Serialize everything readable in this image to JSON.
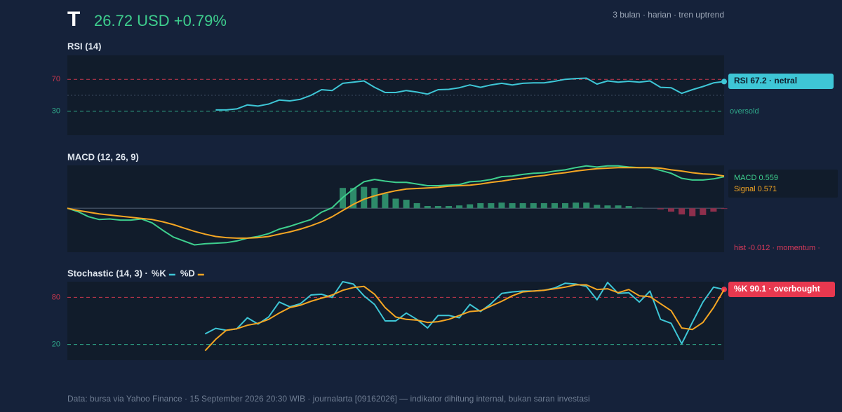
{
  "header": {
    "ticker": "T",
    "price": "26.72 USD +0.79%",
    "subtitle": "3 bulan · harian · tren uptrend"
  },
  "chart_data": [
    {
      "type": "line",
      "title": "RSI (14)",
      "ylim": [
        0,
        100
      ],
      "yticks": [
        30,
        70
      ],
      "ytick_colors": [
        "#2fa88a",
        "#c8384e"
      ],
      "midline": 50,
      "end_dot": "#3ec6d6",
      "categories": [
        null,
        null,
        null,
        null,
        null,
        null,
        null,
        null,
        null,
        null,
        null,
        null,
        null,
        null,
        null,
        null,
        null,
        null,
        null,
        null,
        null,
        null,
        null,
        null,
        null,
        null,
        null,
        null,
        null,
        null,
        null,
        null,
        null,
        null,
        null,
        null,
        null,
        null,
        null,
        null,
        null,
        null,
        null,
        null,
        null,
        null,
        null,
        null,
        null,
        null,
        null,
        null,
        null,
        null,
        null,
        null,
        null,
        null,
        null,
        null,
        null,
        null,
        null
      ],
      "series": [
        {
          "name": "RSI",
          "color": "#3ec6d6",
          "values": [
            null,
            null,
            null,
            null,
            null,
            null,
            null,
            null,
            null,
            null,
            null,
            null,
            null,
            null,
            31.7,
            31.7,
            33,
            38,
            36.5,
            39,
            44,
            43,
            45,
            50,
            57,
            56,
            65,
            66.5,
            68,
            60,
            53.5,
            53.5,
            56,
            54,
            51.5,
            57,
            57.5,
            59.5,
            63,
            60,
            63,
            65,
            63,
            65,
            65.5,
            65.5,
            67.5,
            70,
            71,
            71.5,
            64,
            68,
            66.5,
            67.5,
            66.5,
            68,
            60,
            59.5,
            52.5,
            57,
            61,
            65.5,
            67.2
          ]
        }
      ],
      "annotations": [
        "RSI 67.2 · netral",
        "oversold"
      ]
    },
    {
      "type": "line",
      "title": "MACD (12, 26, 9)",
      "ylim": [
        -0.78,
        0.76
      ],
      "zero_line": true,
      "categories": [
        null,
        null,
        null,
        null,
        null,
        null,
        null,
        null,
        null,
        null,
        null,
        null,
        null,
        null,
        null,
        null,
        null,
        null,
        null,
        null,
        null,
        null,
        null,
        null,
        null,
        null,
        null,
        null,
        null,
        null,
        null,
        null,
        null,
        null,
        null,
        null,
        null,
        null,
        null,
        null,
        null,
        null,
        null,
        null,
        null,
        null,
        null,
        null,
        null,
        null,
        null,
        null,
        null,
        null,
        null,
        null,
        null,
        null,
        null,
        null,
        null,
        null,
        null
      ],
      "series": [
        {
          "type": "bar",
          "color": "#2e8b6a",
          "negative_color": "#8e2f4c",
          "values": [
            null,
            null,
            null,
            null,
            null,
            null,
            null,
            null,
            null,
            null,
            null,
            null,
            null,
            null,
            null,
            null,
            null,
            null,
            null,
            null,
            null,
            null,
            null,
            null,
            null,
            null,
            0.36,
            0.36,
            0.38,
            0.36,
            0.26,
            0.17,
            0.15,
            0.09,
            0.04,
            0.04,
            0.04,
            0.05,
            0.07,
            0.09,
            0.09,
            0.1,
            0.09,
            0.09,
            0.09,
            0.09,
            0.09,
            0.09,
            0.1,
            0.1,
            0.06,
            0.05,
            0.05,
            0.04,
            0.01,
            0,
            -0.02,
            -0.06,
            -0.11,
            -0.14,
            -0.12,
            -0.06,
            -0.012
          ]
        },
        {
          "name": "MACD",
          "color": "#3ecf8e",
          "values": [
            0,
            -0.06,
            -0.15,
            -0.2,
            -0.19,
            -0.21,
            -0.21,
            -0.19,
            -0.26,
            -0.39,
            -0.51,
            -0.58,
            -0.65,
            -0.63,
            -0.62,
            -0.61,
            -0.58,
            -0.53,
            -0.5,
            -0.45,
            -0.37,
            -0.32,
            -0.26,
            -0.2,
            -0.07,
            0.01,
            0.19,
            0.34,
            0.47,
            0.51,
            0.48,
            0.46,
            0.46,
            0.43,
            0.4,
            0.4,
            0.41,
            0.42,
            0.47,
            0.48,
            0.51,
            0.56,
            0.57,
            0.6,
            0.62,
            0.63,
            0.66,
            0.68,
            0.72,
            0.75,
            0.73,
            0.75,
            0.75,
            0.73,
            0.72,
            0.72,
            0.67,
            0.62,
            0.53,
            0.5,
            0.5,
            0.52,
            0.559
          ]
        },
        {
          "name": "Signal",
          "color": "#f5a623",
          "values": [
            0,
            -0.04,
            -0.07,
            -0.1,
            -0.12,
            -0.14,
            -0.16,
            -0.18,
            -0.2,
            -0.24,
            -0.29,
            -0.35,
            -0.41,
            -0.46,
            -0.5,
            -0.52,
            -0.53,
            -0.53,
            -0.52,
            -0.5,
            -0.46,
            -0.42,
            -0.37,
            -0.31,
            -0.24,
            -0.15,
            -0.04,
            0.07,
            0.16,
            0.22,
            0.27,
            0.31,
            0.34,
            0.35,
            0.36,
            0.37,
            0.39,
            0.4,
            0.41,
            0.43,
            0.46,
            0.48,
            0.51,
            0.53,
            0.56,
            0.58,
            0.61,
            0.63,
            0.66,
            0.68,
            0.7,
            0.71,
            0.72,
            0.72,
            0.72,
            0.72,
            0.71,
            0.68,
            0.66,
            0.63,
            0.61,
            0.6,
            0.571
          ]
        }
      ],
      "annotations": [
        "MACD 0.559",
        "Signal 0.571",
        "hist -0.012 · momentum ·"
      ]
    },
    {
      "type": "line",
      "title": "Stochastic (14, 3) ·",
      "ylim": [
        0,
        100
      ],
      "yticks": [
        20,
        80
      ],
      "ytick_colors": [
        "#2fa88a",
        "#c8384e"
      ],
      "end_dot": "#e8384f",
      "categories": [
        null,
        null,
        null,
        null,
        null,
        null,
        null,
        null,
        null,
        null,
        null,
        null,
        null,
        null,
        null,
        null,
        null,
        null,
        null,
        null,
        null,
        null,
        null,
        null,
        null,
        null,
        null,
        null,
        null,
        null,
        null,
        null,
        null,
        null,
        null,
        null,
        null,
        null,
        null,
        null,
        null,
        null,
        null,
        null,
        null,
        null,
        null,
        null,
        null,
        null,
        null,
        null,
        null,
        null,
        null,
        null,
        null,
        null,
        null,
        null,
        null,
        null,
        null
      ],
      "series": [
        {
          "name": "%K",
          "color": "#3ec6d6",
          "values": [
            null,
            null,
            null,
            null,
            null,
            null,
            null,
            null,
            null,
            null,
            null,
            null,
            null,
            33.5,
            40.5,
            38,
            40,
            54,
            46,
            55,
            74,
            68,
            72,
            83,
            84,
            80,
            100,
            97,
            82,
            71,
            50,
            50,
            60,
            52,
            41,
            57,
            57,
            54,
            71,
            62,
            72,
            85,
            87,
            88,
            88,
            89,
            92,
            98,
            97,
            94,
            77,
            99,
            85,
            86,
            74,
            88,
            52,
            47,
            21,
            48,
            74,
            93,
            90.1
          ]
        },
        {
          "name": "%D",
          "color": "#f5a623",
          "values": [
            null,
            null,
            null,
            null,
            null,
            null,
            null,
            null,
            null,
            null,
            null,
            null,
            null,
            12,
            26.5,
            38,
            40,
            44.5,
            47,
            52,
            60,
            67,
            70,
            75,
            79,
            83,
            89,
            92.5,
            94,
            84,
            67,
            55,
            52,
            51,
            48,
            49,
            52,
            57,
            62,
            63,
            69,
            75,
            82,
            87,
            88,
            89,
            91,
            93,
            96,
            96,
            90,
            91,
            86,
            90,
            82,
            81,
            72,
            63,
            41,
            39,
            48,
            67,
            90
          ]
        }
      ],
      "annotations": [
        "%K 90.1 · overbought"
      ]
    }
  ],
  "footer": "Data: bursa via Yahoo Finance · 15 September 2026 20:30 WIB · journalarta [09162026] — indikator dihitung internal, bukan saran investasi"
}
